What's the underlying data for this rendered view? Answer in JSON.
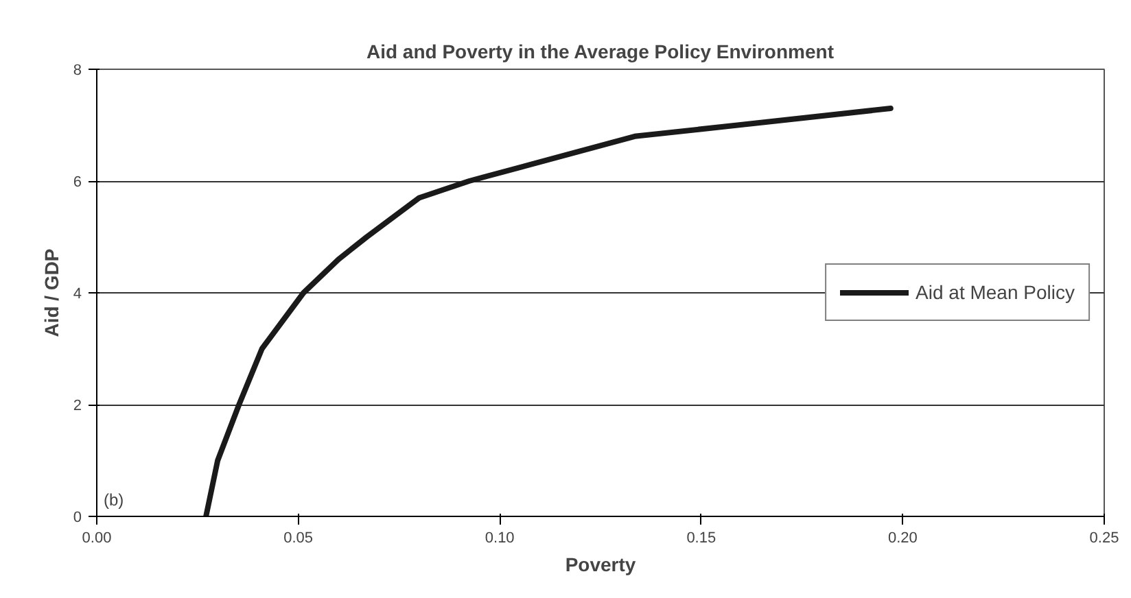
{
  "chart_data": {
    "type": "line",
    "title": "Aid and Poverty in the Average Policy Environment",
    "xlabel": "Poverty",
    "ylabel": "Aid / GDP",
    "series": [
      {
        "name": "Aid at Mean Policy",
        "color": "#1a1a1a",
        "x": [
          0.0271,
          0.03,
          0.0353,
          0.041,
          0.0513,
          0.06,
          0.067,
          0.08,
          0.0924,
          0.113,
          0.1335,
          0.159,
          0.197
        ],
        "values": [
          0,
          1.0,
          2,
          3.0,
          4,
          4.6,
          5.0,
          5.7,
          6,
          6.4,
          6.8,
          7.0,
          7.3
        ]
      }
    ],
    "xlim": [
      0,
      0.25
    ],
    "xticks": [
      {
        "value": 0,
        "label": "0.00"
      },
      {
        "value": 0.05,
        "label": "0.05"
      },
      {
        "value": 0.1,
        "label": "0.10"
      },
      {
        "value": 0.15,
        "label": "0.15"
      },
      {
        "value": 0.2,
        "label": "0.20"
      },
      {
        "value": 0.25,
        "label": "0.25"
      }
    ],
    "ylim": [
      0,
      8
    ],
    "yticks": [
      0,
      2,
      4,
      6,
      8
    ],
    "grid": "y",
    "legend": "right",
    "line_style": "solid",
    "marker": "none",
    "annotations": [
      "(b)"
    ]
  }
}
